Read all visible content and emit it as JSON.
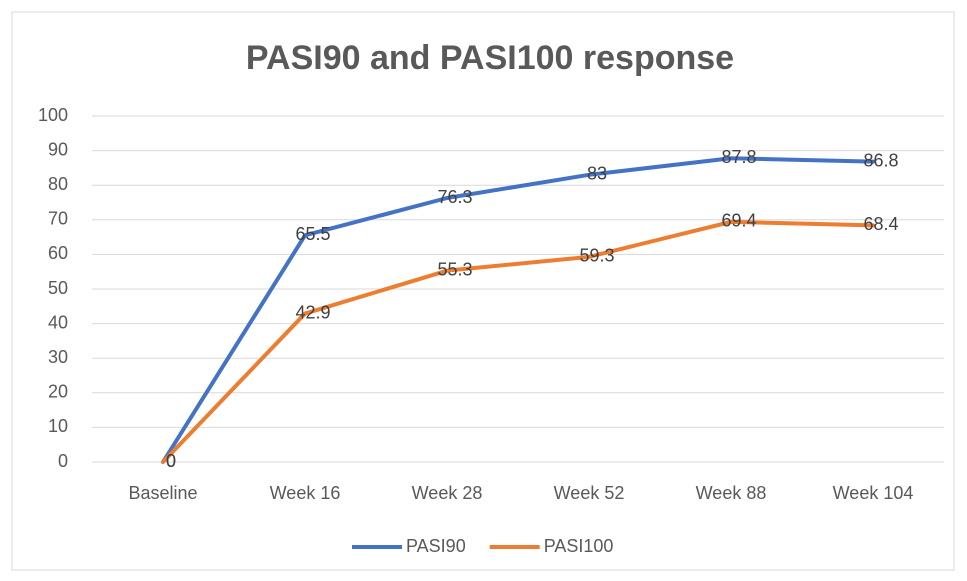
{
  "chart_data": {
    "type": "line",
    "title": "PASI90 and PASI100 response",
    "categories": [
      "Baseline",
      "Week 16",
      "Week 28",
      "Week 52",
      "Week 88",
      "Week 104"
    ],
    "series": [
      {
        "name": "PASI90",
        "color": "#4472c4",
        "values": [
          0,
          65.5,
          76.3,
          83,
          87.8,
          86.8
        ]
      },
      {
        "name": "PASI100",
        "color": "#ed7d31",
        "values": [
          0,
          42.9,
          55.3,
          59.3,
          69.4,
          68.4
        ]
      }
    ],
    "ylim": [
      0,
      100
    ],
    "yticks": [
      0,
      10,
      20,
      30,
      40,
      50,
      60,
      70,
      80,
      90,
      100
    ],
    "grid": true,
    "legend": "bottom",
    "data_labels": true
  }
}
